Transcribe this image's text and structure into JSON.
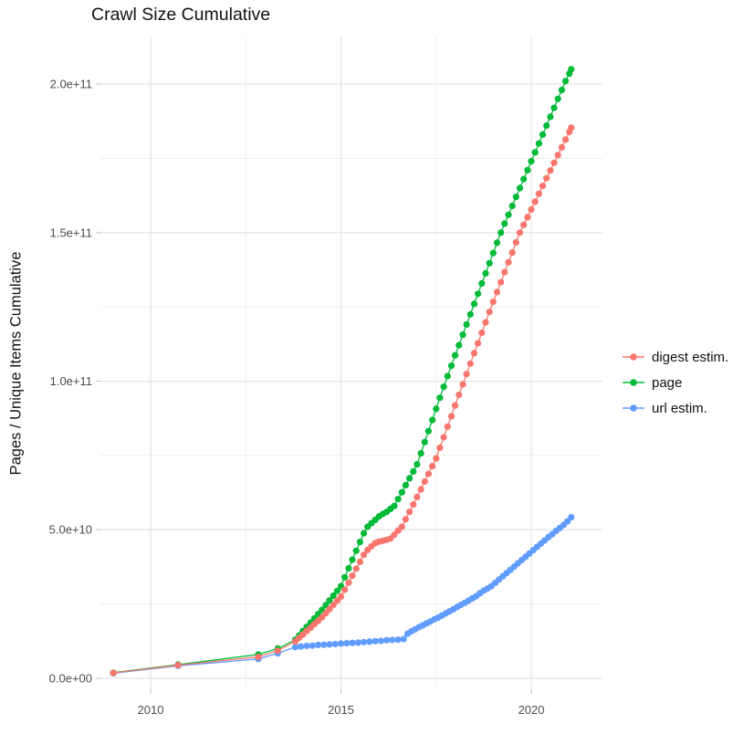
{
  "title": "Crawl Size Cumulative",
  "legend": {
    "items": [
      {
        "label": "digest estim.",
        "color": "#F8766D"
      },
      {
        "label": "page",
        "color": "#00BA38"
      },
      {
        "label": "url estim.",
        "color": "#619CFF"
      }
    ]
  },
  "colors": {
    "grid_major": "#E2E2E2",
    "grid_minor": "#EBEBEB",
    "tick": "#BFBFBF",
    "axis_text": "#4D4D4D",
    "title_text": "#111111"
  },
  "chart_data": {
    "type": "scatter",
    "title": "Crawl Size Cumulative",
    "xlabel": "",
    "ylabel": "Pages / Unique Items Cumulative",
    "xlim": [
      2008.68,
      2021.87
    ],
    "ylim": [
      -3700000000.0,
      216000000000.0
    ],
    "grid": true,
    "legend_position": "right",
    "x_ticks": [
      {
        "value": 2010,
        "label": "2010"
      },
      {
        "value": 2015,
        "label": "2015"
      },
      {
        "value": 2020,
        "label": "2020"
      }
    ],
    "x_minor": [
      2012.5,
      2017.5
    ],
    "y_ticks": [
      {
        "value": 0,
        "label": "0.0e+00"
      },
      {
        "value": 50000000000.0,
        "label": "5.0e+10"
      },
      {
        "value": 100000000000.0,
        "label": "1.0e+11"
      },
      {
        "value": 150000000000.0,
        "label": "1.5e+11"
      },
      {
        "value": 200000000000.0,
        "label": "2.0e+11"
      }
    ],
    "y_minor": [
      25000000000.0,
      75000000000.0,
      125000000000.0,
      175000000000.0
    ],
    "series": [
      {
        "name": "digest estim.",
        "color": "#F8766D",
        "points": [
          [
            2009.02,
            1800000000.0
          ],
          [
            2010.72,
            4400000000.0
          ],
          [
            2012.83,
            7200000000.0
          ],
          [
            2013.34,
            9300000000.0
          ],
          [
            2013.8,
            12400000000.0
          ],
          [
            2013.9,
            13600000000.0
          ],
          [
            2014.0,
            14700000000.0
          ],
          [
            2014.1,
            15900000000.0
          ],
          [
            2014.2,
            17000000000.0
          ],
          [
            2014.3,
            18200000000.0
          ],
          [
            2014.4,
            19300000000.0
          ],
          [
            2014.5,
            20500000000.0
          ],
          [
            2014.6,
            21900000000.0
          ],
          [
            2014.7,
            23300000000.0
          ],
          [
            2014.8,
            24700000000.0
          ],
          [
            2014.9,
            26100000000.0
          ],
          [
            2015.0,
            27500000000.0
          ],
          [
            2015.1,
            29800000000.0
          ],
          [
            2015.2,
            32200000000.0
          ],
          [
            2015.3,
            34500000000.0
          ],
          [
            2015.4,
            36900000000.0
          ],
          [
            2015.5,
            39200000000.0
          ],
          [
            2015.6,
            41600000000.0
          ],
          [
            2015.7,
            43200000000.0
          ],
          [
            2015.8,
            44400000000.0
          ],
          [
            2015.9,
            45500000000.0
          ],
          [
            2016.0,
            46000000000.0
          ],
          [
            2016.1,
            46300000000.0
          ],
          [
            2016.2,
            46600000000.0
          ],
          [
            2016.3,
            47000000000.0
          ],
          [
            2016.4,
            48300000000.0
          ],
          [
            2016.5,
            49700000000.0
          ],
          [
            2016.6,
            51000000000.0
          ],
          [
            2016.7,
            53500000000.0
          ],
          [
            2016.8,
            56000000000.0
          ],
          [
            2016.9,
            58500000000.0
          ],
          [
            2017.0,
            61000000000.0
          ],
          [
            2017.1,
            63600000000.0
          ],
          [
            2017.2,
            66200000000.0
          ],
          [
            2017.3,
            68800000000.0
          ],
          [
            2017.4,
            71400000000.0
          ],
          [
            2017.5,
            74000000000.0
          ],
          [
            2017.6,
            77600000000.0
          ],
          [
            2017.7,
            81100000000.0
          ],
          [
            2017.8,
            84700000000.0
          ],
          [
            2017.9,
            88200000000.0
          ],
          [
            2018.0,
            91800000000.0
          ],
          [
            2018.1,
            95400000000.0
          ],
          [
            2018.2,
            98900000000.0
          ],
          [
            2018.3,
            102400000000.0
          ],
          [
            2018.4,
            105900000000.0
          ],
          [
            2018.5,
            109400000000.0
          ],
          [
            2018.6,
            112800000000.0
          ],
          [
            2018.7,
            116300000000.0
          ],
          [
            2018.8,
            119800000000.0
          ],
          [
            2018.9,
            123300000000.0
          ],
          [
            2019.0,
            126700000000.0
          ],
          [
            2019.1,
            130000000000.0
          ],
          [
            2019.2,
            133300000000.0
          ],
          [
            2019.3,
            136700000000.0
          ],
          [
            2019.4,
            140000000000.0
          ],
          [
            2019.5,
            143300000000.0
          ],
          [
            2019.6,
            146700000000.0
          ],
          [
            2019.7,
            150000000000.0
          ],
          [
            2019.8,
            152600000000.0
          ],
          [
            2019.9,
            155200000000.0
          ],
          [
            2020.0,
            157800000000.0
          ],
          [
            2020.1,
            160400000000.0
          ],
          [
            2020.2,
            163100000000.0
          ],
          [
            2020.3,
            165700000000.0
          ],
          [
            2020.4,
            168300000000.0
          ],
          [
            2020.5,
            170900000000.0
          ],
          [
            2020.6,
            173500000000.0
          ],
          [
            2020.7,
            176100000000.0
          ],
          [
            2020.8,
            178700000000.0
          ],
          [
            2020.9,
            181300000000.0
          ],
          [
            2021.0,
            183900000000.0
          ],
          [
            2021.05,
            185300000000.0
          ]
        ]
      },
      {
        "name": "page",
        "color": "#00BA38",
        "points": [
          [
            2009.02,
            1900000000.0
          ],
          [
            2010.72,
            4600000000.0
          ],
          [
            2012.83,
            8000000000.0
          ],
          [
            2013.34,
            10000000000.0
          ],
          [
            2013.8,
            13000000000.0
          ],
          [
            2013.9,
            14400000000.0
          ],
          [
            2014.0,
            15900000000.0
          ],
          [
            2014.1,
            17300000000.0
          ],
          [
            2014.2,
            18700000000.0
          ],
          [
            2014.3,
            20100000000.0
          ],
          [
            2014.4,
            21600000000.0
          ],
          [
            2014.5,
            23000000000.0
          ],
          [
            2014.6,
            24600000000.0
          ],
          [
            2014.7,
            26200000000.0
          ],
          [
            2014.8,
            27800000000.0
          ],
          [
            2014.9,
            29400000000.0
          ],
          [
            2015.0,
            31000000000.0
          ],
          [
            2015.1,
            34000000000.0
          ],
          [
            2015.2,
            37000000000.0
          ],
          [
            2015.3,
            39900000000.0
          ],
          [
            2015.4,
            42900000000.0
          ],
          [
            2015.5,
            45900000000.0
          ],
          [
            2015.6,
            48800000000.0
          ],
          [
            2015.7,
            51000000000.0
          ],
          [
            2015.8,
            52200000000.0
          ],
          [
            2015.9,
            53300000000.0
          ],
          [
            2016.0,
            54500000000.0
          ],
          [
            2016.1,
            55300000000.0
          ],
          [
            2016.2,
            56000000000.0
          ],
          [
            2016.3,
            57000000000.0
          ],
          [
            2016.4,
            58000000000.0
          ],
          [
            2016.5,
            60300000000.0
          ],
          [
            2016.6,
            62600000000.0
          ],
          [
            2016.7,
            65000000000.0
          ],
          [
            2016.8,
            67300000000.0
          ],
          [
            2016.9,
            69600000000.0
          ],
          [
            2017.0,
            72000000000.0
          ],
          [
            2017.1,
            75700000000.0
          ],
          [
            2017.2,
            79500000000.0
          ],
          [
            2017.3,
            83200000000.0
          ],
          [
            2017.4,
            86900000000.0
          ],
          [
            2017.5,
            90700000000.0
          ],
          [
            2017.6,
            94400000000.0
          ],
          [
            2017.7,
            98100000000.0
          ],
          [
            2017.8,
            101700000000.0
          ],
          [
            2017.9,
            105200000000.0
          ],
          [
            2018.0,
            108700000000.0
          ],
          [
            2018.1,
            112100000000.0
          ],
          [
            2018.2,
            115600000000.0
          ],
          [
            2018.3,
            119100000000.0
          ],
          [
            2018.4,
            122500000000.0
          ],
          [
            2018.5,
            126000000000.0
          ],
          [
            2018.6,
            129400000000.0
          ],
          [
            2018.7,
            132900000000.0
          ],
          [
            2018.8,
            136300000000.0
          ],
          [
            2018.9,
            139700000000.0
          ],
          [
            2019.0,
            143100000000.0
          ],
          [
            2019.1,
            146600000000.0
          ],
          [
            2019.2,
            150000000000.0
          ],
          [
            2019.3,
            153000000000.0
          ],
          [
            2019.4,
            156000000000.0
          ],
          [
            2019.5,
            159000000000.0
          ],
          [
            2019.6,
            162000000000.0
          ],
          [
            2019.7,
            165000000000.0
          ],
          [
            2019.8,
            168000000000.0
          ],
          [
            2019.9,
            171000000000.0
          ],
          [
            2020.0,
            174000000000.0
          ],
          [
            2020.1,
            177000000000.0
          ],
          [
            2020.2,
            180000000000.0
          ],
          [
            2020.3,
            183000000000.0
          ],
          [
            2020.4,
            186000000000.0
          ],
          [
            2020.5,
            189000000000.0
          ],
          [
            2020.6,
            192000000000.0
          ],
          [
            2020.7,
            195000000000.0
          ],
          [
            2020.8,
            198000000000.0
          ],
          [
            2020.9,
            201000000000.0
          ],
          [
            2021.0,
            203500000000.0
          ],
          [
            2021.05,
            205000000000.0
          ]
        ]
      },
      {
        "name": "url estim.",
        "color": "#619CFF",
        "points": [
          [
            2009.02,
            1700000000.0
          ],
          [
            2010.72,
            4200000000.0
          ],
          [
            2012.83,
            6500000000.0
          ],
          [
            2013.34,
            8400000000.0
          ],
          [
            2013.8,
            10500000000.0
          ],
          [
            2013.95,
            10700000000.0
          ],
          [
            2014.1,
            10900000000.0
          ],
          [
            2014.25,
            11000000000.0
          ],
          [
            2014.4,
            11200000000.0
          ],
          [
            2014.55,
            11300000000.0
          ],
          [
            2014.7,
            11400000000.0
          ],
          [
            2014.85,
            11500000000.0
          ],
          [
            2015.0,
            11700000000.0
          ],
          [
            2015.15,
            11800000000.0
          ],
          [
            2015.3,
            11900000000.0
          ],
          [
            2015.45,
            12000000000.0
          ],
          [
            2015.6,
            12200000000.0
          ],
          [
            2015.75,
            12300000000.0
          ],
          [
            2015.9,
            12500000000.0
          ],
          [
            2016.05,
            12600000000.0
          ],
          [
            2016.2,
            12800000000.0
          ],
          [
            2016.35,
            12900000000.0
          ],
          [
            2016.5,
            13000000000.0
          ],
          [
            2016.65,
            13200000000.0
          ],
          [
            2016.75,
            15000000000.0
          ],
          [
            2016.85,
            15800000000.0
          ],
          [
            2016.95,
            16500000000.0
          ],
          [
            2017.05,
            17200000000.0
          ],
          [
            2017.15,
            17800000000.0
          ],
          [
            2017.25,
            18500000000.0
          ],
          [
            2017.35,
            19100000000.0
          ],
          [
            2017.45,
            19800000000.0
          ],
          [
            2017.55,
            20400000000.0
          ],
          [
            2017.65,
            21100000000.0
          ],
          [
            2017.75,
            21800000000.0
          ],
          [
            2017.85,
            22500000000.0
          ],
          [
            2017.95,
            23200000000.0
          ],
          [
            2018.05,
            24000000000.0
          ],
          [
            2018.15,
            24700000000.0
          ],
          [
            2018.25,
            25400000000.0
          ],
          [
            2018.35,
            26100000000.0
          ],
          [
            2018.45,
            26900000000.0
          ],
          [
            2018.55,
            27600000000.0
          ],
          [
            2018.65,
            28600000000.0
          ],
          [
            2018.75,
            29500000000.0
          ],
          [
            2018.85,
            30200000000.0
          ],
          [
            2018.95,
            31000000000.0
          ],
          [
            2019.05,
            32100000000.0
          ],
          [
            2019.15,
            33200000000.0
          ],
          [
            2019.25,
            34300000000.0
          ],
          [
            2019.35,
            35400000000.0
          ],
          [
            2019.45,
            36500000000.0
          ],
          [
            2019.55,
            37600000000.0
          ],
          [
            2019.65,
            38700000000.0
          ],
          [
            2019.75,
            39800000000.0
          ],
          [
            2019.85,
            40900000000.0
          ],
          [
            2019.95,
            42000000000.0
          ],
          [
            2020.05,
            43100000000.0
          ],
          [
            2020.15,
            44200000000.0
          ],
          [
            2020.25,
            45300000000.0
          ],
          [
            2020.35,
            46400000000.0
          ],
          [
            2020.45,
            47500000000.0
          ],
          [
            2020.55,
            48500000000.0
          ],
          [
            2020.65,
            49600000000.0
          ],
          [
            2020.75,
            50600000000.0
          ],
          [
            2020.85,
            51600000000.0
          ],
          [
            2020.95,
            52800000000.0
          ],
          [
            2021.05,
            54200000000.0
          ]
        ]
      }
    ]
  }
}
